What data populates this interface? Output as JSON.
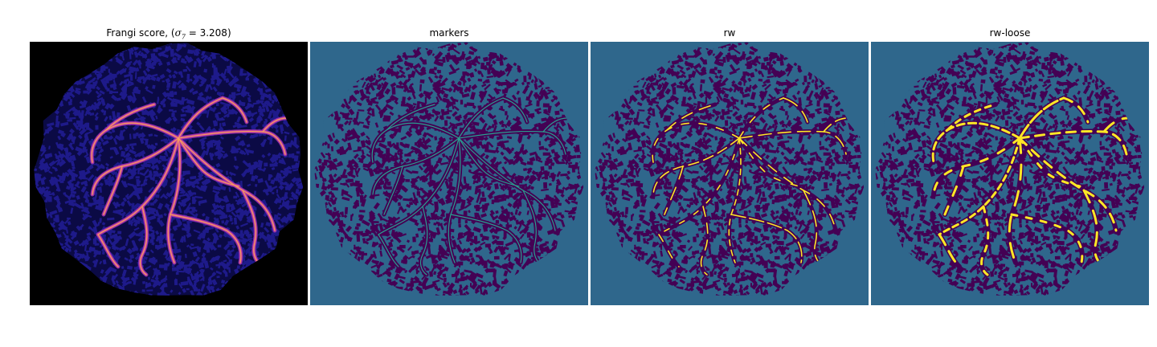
{
  "panels": [
    {
      "key": "frangi",
      "title_pre": "Frangi score, (",
      "title_sym": "σ",
      "title_sub": "7",
      "title_post": " = 3.208)",
      "colormap": "magma",
      "colors": {
        "background": "#000000",
        "tissue": "#1e1a8a",
        "tissue_dark": "#0b0a45",
        "vessel": "#c7459a",
        "vessel_bright": "#f7a35c",
        "vessel_mid": "#8f2bb0"
      }
    },
    {
      "key": "markers",
      "title": "markers",
      "colors": {
        "background": "#2f678c",
        "tissue": "#440154",
        "marker": "#2a9d8f"
      }
    },
    {
      "key": "rw",
      "title": "rw",
      "colors": {
        "background": "#2f678c",
        "tissue": "#440154",
        "label": "#fde725"
      }
    },
    {
      "key": "rw-loose",
      "title": "rw-loose",
      "colors": {
        "background": "#2f678c",
        "tissue": "#440154",
        "label": "#fde725"
      }
    }
  ]
}
